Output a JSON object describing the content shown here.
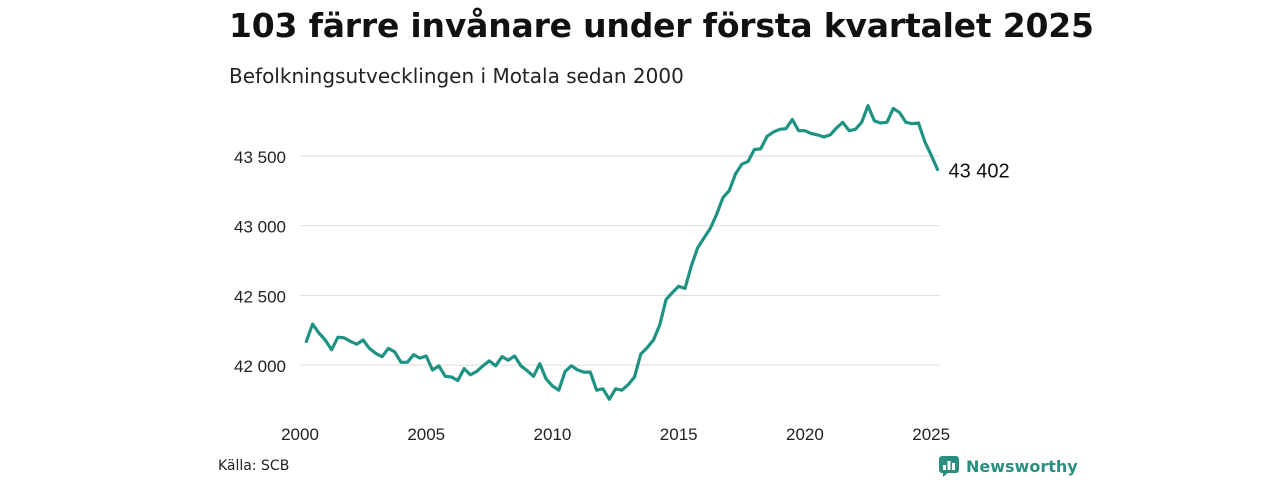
{
  "title": "103 färre invånare under första kvartalet 2025",
  "subtitle": "Befolkningsutvecklingen i Motala sedan 2000",
  "source": "Källa: SCB",
  "brand": {
    "name": "Newsworthy",
    "icon": "newsworthy-logo-icon"
  },
  "colors": {
    "line": "#1f9383",
    "grid": "#dddddd",
    "brand": "#2a8f80"
  },
  "chart_data": {
    "type": "line",
    "title": "103 färre invånare under första kvartalet 2025",
    "subtitle": "Befolkningsutvecklingen i Motala sedan 2000",
    "xlabel": "",
    "ylabel": "",
    "xlim": [
      2000,
      2025.35
    ],
    "ylim": [
      41750,
      43900
    ],
    "x_ticks": [
      2000,
      2005,
      2010,
      2015,
      2020,
      2025
    ],
    "x_tick_labels": [
      "2000",
      "2005",
      "2010",
      "2015",
      "2020",
      "2025"
    ],
    "y_ticks": [
      42000,
      42500,
      43000,
      43500
    ],
    "y_tick_labels": [
      "42 000",
      "42 500",
      "43 000",
      "43 500"
    ],
    "grid": true,
    "end_label": "43 402",
    "series": [
      {
        "x_start": 2000.25,
        "x_step": 0.25,
        "values": [
          42170,
          42295,
          42230,
          42180,
          42110,
          42200,
          42195,
          42170,
          42150,
          42180,
          42120,
          42085,
          42060,
          42120,
          42095,
          42020,
          42020,
          42075,
          42050,
          42065,
          41965,
          41995,
          41920,
          41915,
          41890,
          41975,
          41930,
          41955,
          41995,
          42030,
          41995,
          42060,
          42035,
          42065,
          41995,
          41960,
          41920,
          42010,
          41900,
          41850,
          41820,
          41955,
          41995,
          41965,
          41950,
          41950,
          41820,
          41830,
          41755,
          41830,
          41820,
          41860,
          41915,
          42080,
          42125,
          42180,
          42290,
          42470,
          42520,
          42565,
          42550,
          42710,
          42840,
          42910,
          42980,
          43080,
          43200,
          43250,
          43370,
          43440,
          43460,
          43545,
          43550,
          43640,
          43670,
          43690,
          43695,
          43760,
          43680,
          43680,
          43660,
          43650,
          43635,
          43650,
          43700,
          43740,
          43680,
          43690,
          43740,
          43860,
          43750,
          43735,
          43740,
          43840,
          43810,
          43740,
          43730,
          43735,
          43600,
          43505,
          43402
        ]
      }
    ]
  }
}
